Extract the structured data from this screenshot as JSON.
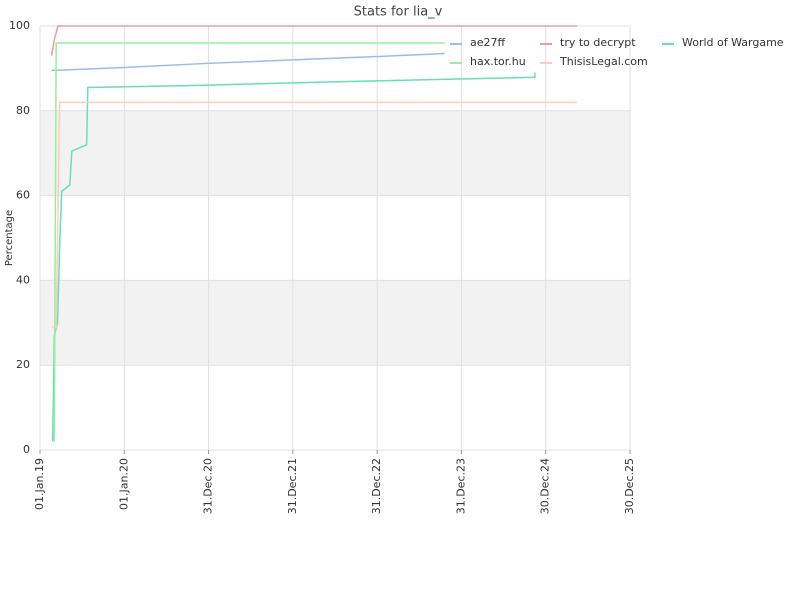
{
  "chart_data": {
    "type": "line",
    "title": "Stats for lia_v",
    "y_label": "Percentage",
    "ylim": [
      0,
      100
    ],
    "yticks": [
      0,
      20,
      40,
      60,
      80,
      100
    ],
    "xlim": [
      "2019-01-01",
      "2025-12-30"
    ],
    "xticks": [
      {
        "value": "2019-01-01",
        "label": "01.Jan.19"
      },
      {
        "value": "2020-01-01",
        "label": "01.Jan.20"
      },
      {
        "value": "2020-12-31",
        "label": "31.Dec.20"
      },
      {
        "value": "2021-12-31",
        "label": "31.Dec.21"
      },
      {
        "value": "2022-12-31",
        "label": "31.Dec.22"
      },
      {
        "value": "2023-12-31",
        "label": "31.Dec.23"
      },
      {
        "value": "2024-12-30",
        "label": "30.Dec.24"
      },
      {
        "value": "2025-12-30",
        "label": "30.Dec.25"
      }
    ],
    "grid": true,
    "series": [
      {
        "name": "ae27ff",
        "color": "#99bbee",
        "x": [
          "2019-02-20",
          "2020-01-01",
          "2021-01-01",
          "2022-01-01",
          "2023-01-01",
          "2023-10-20"
        ],
        "values": [
          89.5,
          90.2,
          91.2,
          92,
          92.8,
          93.5
        ]
      },
      {
        "name": "try to decrypt",
        "color": "#ee99aa",
        "x": [
          "2019-02-20",
          "2019-03-05",
          "2019-03-20",
          "2025-05-15"
        ],
        "values": [
          93,
          97,
          100,
          100
        ]
      },
      {
        "name": "World of Wargame",
        "color": "#66ddbb",
        "x": [
          "2019-02-25",
          "2019-03-04",
          "2019-03-18",
          "2019-03-27",
          "2019-04-05",
          "2019-05-10",
          "2019-05-19",
          "2019-07-22",
          "2019-07-27",
          "2020-11-24",
          "2022-06-01",
          "2024-11-13",
          "2024-11-14"
        ],
        "values": [
          2,
          27,
          30,
          48,
          61,
          62.5,
          70.5,
          72,
          85.5,
          86,
          86.8,
          87.9,
          89
        ]
      },
      {
        "name": "hax.tor.hu",
        "color": "#99ee99",
        "x": [
          "2019-03-04",
          "2019-03-12",
          "2023-10-20"
        ],
        "values": [
          2,
          96,
          96
        ]
      },
      {
        "name": "ThisisLegal.com",
        "color": "#ffccbb",
        "x": [
          "2019-02-20",
          "2019-03-12",
          "2019-03-27",
          "2025-05-15"
        ],
        "values": [
          29,
          29,
          82,
          82
        ]
      }
    ]
  }
}
